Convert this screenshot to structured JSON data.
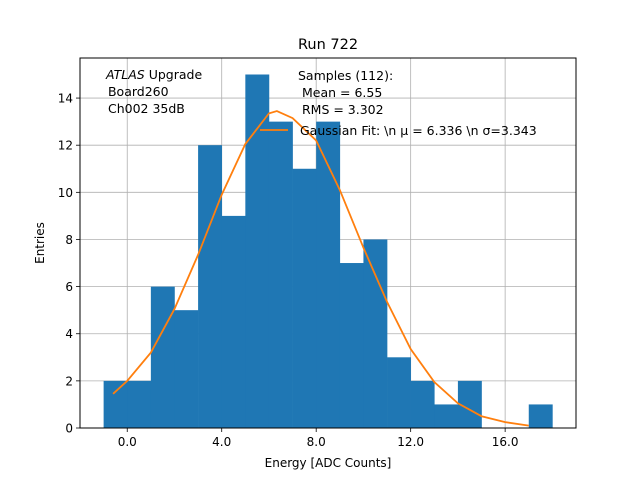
{
  "chart_data": {
    "type": "bar",
    "title": "Run 722",
    "xlabel": "Energy [ADC Counts]",
    "ylabel": "Entries",
    "xlim": [
      -2.0,
      19.0
    ],
    "ylim": [
      0,
      15.7
    ],
    "grid": true,
    "x_ticks": [
      0,
      4,
      8,
      12,
      16
    ],
    "x_tick_labels": [
      "0.0",
      "4.0",
      "8.0",
      "12.0",
      "16.0"
    ],
    "y_ticks": [
      0,
      2,
      4,
      6,
      8,
      10,
      12,
      14
    ],
    "y_tick_labels": [
      "0",
      "2",
      "4",
      "6",
      "8",
      "10",
      "12",
      "14"
    ],
    "histogram": {
      "name": "Samples (112):\n Mean = 6.55\n RMS = 3.302",
      "color": "#1f77b4",
      "bin_edges": [
        -1,
        0,
        1,
        2,
        3,
        4,
        5,
        6,
        7,
        8,
        9,
        10,
        11,
        12,
        13,
        14,
        15,
        16,
        17,
        18
      ],
      "counts": [
        2,
        2,
        6,
        5,
        12,
        9,
        15,
        13,
        11,
        13,
        7,
        8,
        3,
        2,
        1,
        2,
        0,
        0,
        1
      ]
    },
    "fit": {
      "name": "Gaussian Fit: \\n $\\mu$ = 6.336 \\n $\\sigma$=3.343",
      "color": "#ff7f0e",
      "x": [
        -0.6,
        0.0,
        1.0,
        2.0,
        3.0,
        4.0,
        5.0,
        6.0,
        6.336,
        7.0,
        8.0,
        9.0,
        10.0,
        11.0,
        12.0,
        13.0,
        14.0,
        15.0,
        16.0,
        17.0
      ],
      "y": [
        1.45,
        2.0,
        3.2,
        5.05,
        7.35,
        9.9,
        12.05,
        13.35,
        13.45,
        13.15,
        12.2,
        10.1,
        7.65,
        5.35,
        3.35,
        1.95,
        1.05,
        0.5,
        0.25,
        0.1
      ]
    },
    "legend": {
      "placement": "top-center",
      "samples_lines": [
        "Samples (112):",
        " Mean = 6.55",
        " RMS = 3.302"
      ],
      "fit_label": "Gaussian Fit: \\n μ = 6.336 \\n σ=3.343"
    },
    "annotation": {
      "italic": "ATLAS",
      "rest": " Upgrade",
      "line2": " Board260",
      "line3": " Ch002 35dB"
    }
  }
}
